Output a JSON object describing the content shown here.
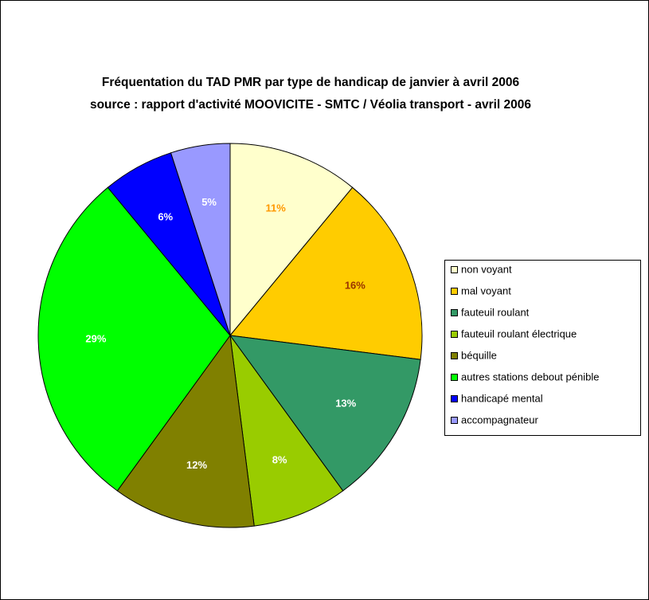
{
  "chart_data": {
    "type": "pie",
    "title": "Fréquentation du TAD PMR par type de handicap de janvier à avril 2006",
    "subtitle": "source : rapport d'activité MOOVICITE - SMTC / Véolia transport - avril 2006",
    "categories": [
      "non voyant",
      "mal voyant",
      "fauteuil roulant",
      "fauteuil roulant électrique",
      "béquille",
      "autres stations debout pénible",
      "handicapé mental",
      "accompagnateur"
    ],
    "values": [
      11,
      16,
      13,
      8,
      12,
      29,
      6,
      5
    ],
    "value_labels": [
      "11%",
      "16%",
      "13%",
      "8%",
      "12%",
      "29%",
      "6%",
      "5%"
    ],
    "colors": [
      "#ffffcc",
      "#ffcc00",
      "#339966",
      "#99cc00",
      "#808000",
      "#00ff00",
      "#0000ff",
      "#9999ff"
    ],
    "label_colors": [
      "#ff9900",
      "#993300",
      "#ffffff",
      "#ffffff",
      "#ffffff",
      "#ffffff",
      "#ffffff",
      "#ffffff"
    ],
    "legend": "right"
  }
}
